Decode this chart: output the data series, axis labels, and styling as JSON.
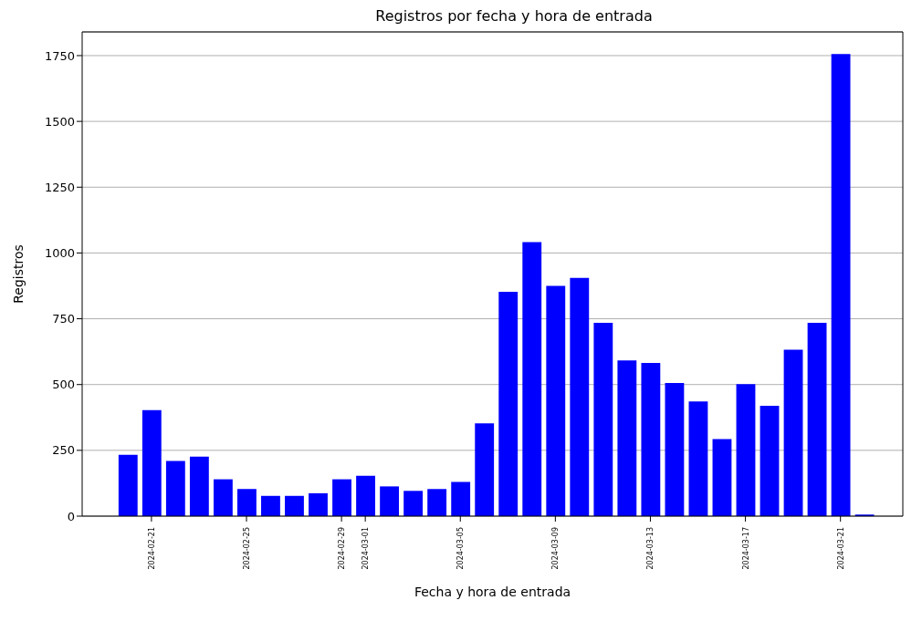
{
  "chart_data": {
    "type": "bar",
    "title": "Registros por fecha y hora de entrada",
    "xlabel": "Fecha y hora de entrada",
    "ylabel": "Registros",
    "x": [
      "2024-02-20",
      "2024-02-21",
      "2024-02-22",
      "2024-02-23",
      "2024-02-24",
      "2024-02-25",
      "2024-02-26",
      "2024-02-27",
      "2024-02-28",
      "2024-02-29",
      "2024-03-01",
      "2024-03-02",
      "2024-03-03",
      "2024-03-04",
      "2024-03-05",
      "2024-03-06",
      "2024-03-07",
      "2024-03-08",
      "2024-03-09",
      "2024-03-10",
      "2024-03-11",
      "2024-03-12",
      "2024-03-13",
      "2024-03-14",
      "2024-03-15",
      "2024-03-16",
      "2024-03-17",
      "2024-03-18",
      "2024-03-19",
      "2024-03-20",
      "2024-03-21",
      "2024-03-22"
    ],
    "values": [
      233,
      403,
      210,
      226,
      140,
      103,
      77,
      77,
      87,
      140,
      153,
      113,
      96,
      103,
      130,
      353,
      852,
      1041,
      875,
      905,
      735,
      592,
      582,
      506,
      436,
      293,
      502,
      419,
      632,
      735,
      1756,
      6
    ],
    "color": "#0000ff",
    "xlim": [
      "2024-02-18T02:00",
      "2024-03-23T15:00"
    ],
    "xticks": [
      "2024-02-21",
      "2024-02-25",
      "2024-02-29",
      "2024-03-01",
      "2024-03-05",
      "2024-03-09",
      "2024-03-13",
      "2024-03-17",
      "2024-03-21"
    ],
    "ylim": [
      0,
      1840
    ],
    "yticks": [
      0,
      250,
      500,
      750,
      1000,
      1250,
      1500,
      1750
    ],
    "grid": "y"
  }
}
